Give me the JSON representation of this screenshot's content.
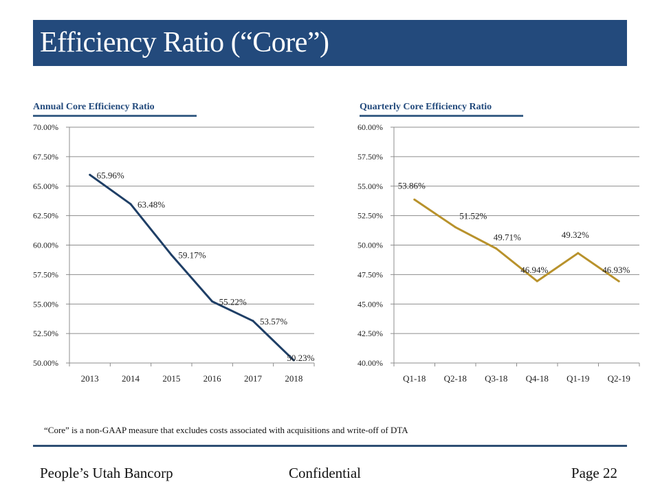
{
  "slide": {
    "title": "Efficiency Ratio (“Core”)",
    "footnote": "“Core” is a non-GAAP measure that excludes costs associated with acquisitions and write-off of DTA",
    "footer": {
      "company": "People’s Utah Bancorp",
      "classification": "Confidential",
      "page": "Page 22"
    },
    "colors": {
      "title_bar": "#234A7C",
      "annual_line": "#1F3F66",
      "quarterly_line": "#B8922C"
    }
  },
  "chart_data": [
    {
      "type": "line",
      "title": "Annual  Core Efficiency Ratio",
      "xlabel": "",
      "ylabel": "",
      "categories": [
        "2013",
        "2014",
        "2015",
        "2016",
        "2017",
        "2018"
      ],
      "series": [
        {
          "name": "Annual Core Efficiency Ratio",
          "values": [
            65.96,
            63.48,
            59.17,
            55.22,
            53.57,
            50.23
          ]
        }
      ],
      "data_labels": [
        "65.96%",
        "63.48%",
        "59.17%",
        "55.22%",
        "53.57%",
        "50.23%"
      ],
      "ylim": [
        50.0,
        70.0
      ],
      "yticks": [
        "50.00%",
        "52.50%",
        "55.00%",
        "57.50%",
        "60.00%",
        "62.50%",
        "65.00%",
        "67.50%",
        "70.00%"
      ],
      "ytick_values": [
        50.0,
        52.5,
        55.0,
        57.5,
        60.0,
        62.5,
        65.0,
        67.5,
        70.0
      ],
      "grid": true,
      "legend": "none"
    },
    {
      "type": "line",
      "title": "Quarterly Core Efficiency Ratio",
      "xlabel": "",
      "ylabel": "",
      "categories": [
        "Q1-18",
        "Q2-18",
        "Q3-18",
        "Q4-18",
        "Q1-19",
        "Q2-19"
      ],
      "series": [
        {
          "name": "Quarterly Core Efficiency Ratio",
          "values": [
            53.86,
            51.52,
            49.71,
            46.94,
            49.32,
            46.93
          ]
        }
      ],
      "data_labels": [
        "53.86%",
        "51.52%",
        "49.71%",
        "46.94%",
        "49.32%",
        "46.93%"
      ],
      "ylim": [
        40.0,
        60.0
      ],
      "yticks": [
        "40.00%",
        "42.50%",
        "45.00%",
        "47.50%",
        "50.00%",
        "52.50%",
        "55.00%",
        "57.50%",
        "60.00%"
      ],
      "ytick_values": [
        40.0,
        42.5,
        45.0,
        47.5,
        50.0,
        52.5,
        55.0,
        57.5,
        60.0
      ],
      "grid": true,
      "legend": "none"
    }
  ]
}
